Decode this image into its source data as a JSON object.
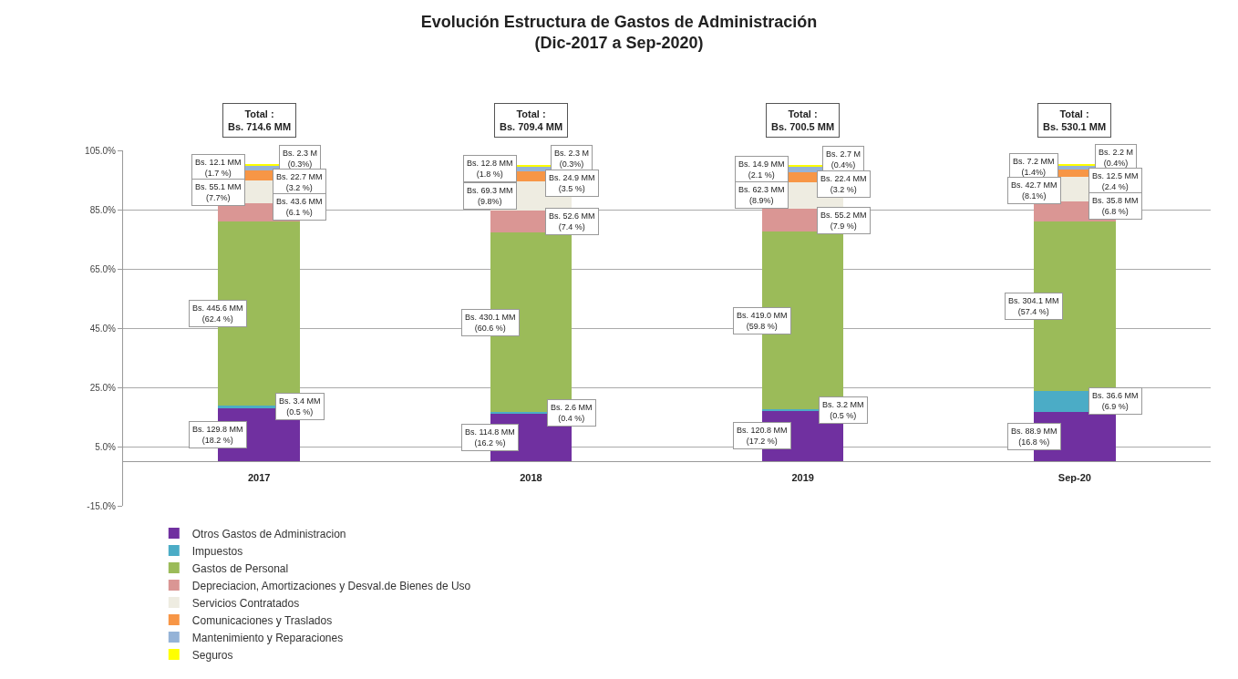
{
  "chart_data": {
    "type": "bar",
    "title": "Evolución Estructura de Gastos de Administración\n(Dic-2017 a Sep-2020)",
    "categories": [
      "2017",
      "2018",
      "2019",
      "Sep-20"
    ],
    "stacked": true,
    "series": [
      {
        "name": "Otros Gastos de Administracion",
        "color": "#7030a0",
        "values": [
          18.2,
          16.2,
          17.2,
          16.8
        ],
        "value_labels": [
          "Bs. 129.8 MM\n(18.2 %)",
          "Bs. 114.8 MM\n(16.2 %)",
          "Bs. 120.8 MM\n(17.2 %)",
          "Bs. 88.9 MM\n(16.8 %)"
        ]
      },
      {
        "name": "Impuestos",
        "color": "#4bacc6",
        "values": [
          0.5,
          0.4,
          0.5,
          6.9
        ],
        "value_labels": [
          "Bs. 3.4 MM\n(0.5 %)",
          "Bs. 2.6 MM\n(0.4 %)",
          "Bs. 3.2 MM\n(0.5 %)",
          "Bs. 36.6 MM\n(6.9 %)"
        ]
      },
      {
        "name": "Gastos de Personal",
        "color": "#9bbb59",
        "values": [
          62.4,
          60.6,
          59.8,
          57.4
        ],
        "value_labels": [
          "Bs. 445.6 MM\n(62.4 %)",
          "Bs. 430.1 MM\n(60.6 %)",
          "Bs. 419.0 MM\n(59.8 %)",
          "Bs. 304.1 MM\n(57.4 %)"
        ]
      },
      {
        "name": "Depreciacion, Amortizaciones y Desval.de Bienes de Uso",
        "color": "#da9694",
        "values": [
          6.1,
          7.4,
          7.9,
          6.8
        ],
        "value_labels": [
          "Bs. 43.6 MM\n(6.1 %)",
          "Bs. 52.6 MM\n(7.4 %)",
          "Bs. 55.2 MM\n(7.9 %)",
          "Bs. 35.8 MM\n(6.8 %)"
        ]
      },
      {
        "name": "Servicios Contratados",
        "color": "#eeece1",
        "values": [
          7.7,
          9.8,
          8.9,
          8.1
        ],
        "value_labels": [
          "Bs. 55.1 MM\n(7.7%)",
          "Bs. 69.3 MM\n(9.8%)",
          "Bs. 62.3 MM\n(8.9%)",
          "Bs. 42.7 MM\n(8.1%)"
        ]
      },
      {
        "name": "Comunicaciones y Traslados",
        "color": "#f79646",
        "values": [
          3.2,
          3.5,
          3.2,
          2.4
        ],
        "value_labels": [
          "Bs. 22.7 MM\n(3.2 %)",
          "Bs. 24.9 MM\n(3.5 %)",
          "Bs. 22.4 MM\n(3.2 %)",
          "Bs. 12.5 MM\n(2.4 %)"
        ]
      },
      {
        "name": "Mantenimiento y Reparaciones",
        "color": "#95b3d7",
        "values": [
          1.7,
          1.8,
          2.1,
          1.4
        ],
        "value_labels": [
          "Bs. 12.1 MM\n(1.7 %)",
          "Bs. 12.8 MM\n(1.8 %)",
          "Bs. 14.9 MM\n(2.1 %)",
          "Bs. 7.2 MM\n(1.4%)"
        ]
      },
      {
        "name": "Seguros",
        "color": "#ffff00",
        "values": [
          0.3,
          0.3,
          0.4,
          0.4
        ],
        "value_labels": [
          "Bs. 2.3 M\n(0.3%)",
          "Bs. 2.3 M\n(0.3%)",
          "Bs. 2.7 M\n(0.4%)",
          "Bs. 2.2 M\n(0.4%)"
        ]
      }
    ],
    "annotations": [
      "Total :\nBs. 714.6 MM",
      "Total :\nBs. 709.4 MM",
      "Total :\nBs. 700.5 MM",
      "Total :\nBs. 530.1 MM"
    ],
    "ylim": [
      -15,
      105
    ],
    "yticks": [
      {
        "value": -15,
        "label": "-15.0%"
      },
      {
        "value": 5,
        "label": "5.0%"
      },
      {
        "value": 25,
        "label": "25.0%"
      },
      {
        "value": 45,
        "label": "45.0%"
      },
      {
        "value": 65,
        "label": "65.0%"
      },
      {
        "value": 85,
        "label": "85.0%"
      },
      {
        "value": 105,
        "label": "105.0%"
      }
    ],
    "grid": "y",
    "legend": "bottom"
  }
}
